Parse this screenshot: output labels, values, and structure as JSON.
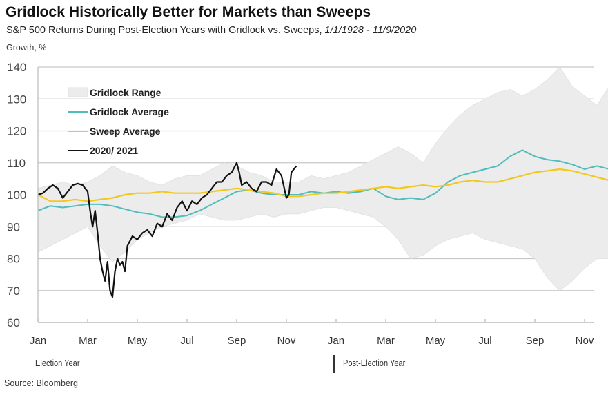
{
  "header": {
    "title": "Gridlock Historically Better for Markets than Sweeps",
    "subtitle_main": "S&P 500 Returns During Post-Election Years with Gridlock vs. Sweeps, ",
    "subtitle_range": "1/1/1928 - 11/9/2020"
  },
  "footer": {
    "election_year": "Election Year",
    "post_election_year": "Post-Election Year",
    "source": "Source: Bloomberg"
  },
  "colors": {
    "gridlock_range": "#ececec",
    "gridlock_average": "#4fbdbd",
    "sweep_average": "#f2c81e",
    "y2020": "#111111"
  },
  "chart_data": {
    "type": "line",
    "title": "Gridlock Historically Better for Markets than Sweeps",
    "ylabel": "Growth, %",
    "xlabel": "",
    "ylim": [
      60,
      140
    ],
    "yticks": [
      60,
      70,
      80,
      90,
      100,
      110,
      120,
      130,
      140
    ],
    "x_unit": "months since Jan of election year",
    "xlim": [
      0,
      23.5
    ],
    "xtick_labels": [
      "Jan",
      "Mar",
      "May",
      "Jul",
      "Sep",
      "Nov",
      "Jan",
      "Mar",
      "May",
      "Jul",
      "Sep",
      "Nov"
    ],
    "xtick_positions": [
      0,
      2,
      4,
      6,
      8,
      10,
      12,
      14,
      16,
      18,
      20,
      22
    ],
    "grid": "horizontal",
    "legend_position": "top-left",
    "legend": [
      "Gridlock Range",
      "Gridlock Average",
      "Sweep Average",
      "2020/ 2021"
    ],
    "series": [
      {
        "name": "Gridlock Range",
        "kind": "band",
        "x": [
          0,
          0.5,
          1,
          1.5,
          2,
          2.5,
          3,
          3.5,
          4,
          4.5,
          5,
          5.5,
          6,
          6.5,
          7,
          7.5,
          8,
          8.5,
          9,
          9.5,
          10,
          10.5,
          11,
          11.5,
          12,
          12.5,
          13,
          13.5,
          14,
          14.5,
          15,
          15.5,
          16,
          16.5,
          17,
          17.5,
          18,
          18.5,
          19,
          19.5,
          20,
          20.5,
          21,
          21.5,
          22,
          22.5,
          23,
          23.5
        ],
        "upper": [
          102,
          103,
          104,
          103,
          104,
          106,
          109,
          107,
          106,
          104,
          103,
          105,
          106,
          106,
          108,
          110,
          109,
          107,
          106,
          104,
          104,
          104,
          106,
          105,
          106,
          107,
          109,
          111,
          113,
          115,
          113,
          110,
          116,
          121,
          125,
          128,
          130,
          132,
          133,
          131,
          133,
          136,
          140,
          134,
          131,
          128,
          134,
          134
        ],
        "lower": [
          82,
          84,
          86,
          88,
          90,
          84,
          79,
          82,
          86,
          88,
          90,
          91,
          92,
          94,
          93,
          92,
          92,
          93,
          94,
          93,
          94,
          94,
          95,
          96,
          96,
          95,
          94,
          93,
          90,
          86,
          80,
          81,
          84,
          86,
          87,
          88,
          86,
          85,
          84,
          83,
          80,
          74,
          70,
          73,
          77,
          80,
          80,
          80
        ]
      },
      {
        "name": "Gridlock Average",
        "x": [
          0,
          0.5,
          1,
          1.5,
          2,
          2.5,
          3,
          3.5,
          4,
          4.5,
          5,
          5.5,
          6,
          6.5,
          7,
          7.5,
          8,
          8.5,
          9,
          9.5,
          10,
          10.5,
          11,
          11.5,
          12,
          12.5,
          13,
          13.5,
          14,
          14.5,
          15,
          15.5,
          16,
          16.5,
          17,
          17.5,
          18,
          18.5,
          19,
          19.5,
          20,
          20.5,
          21,
          21.5,
          22,
          22.5,
          23,
          23.5
        ],
        "values": [
          95,
          96.5,
          96,
          96.5,
          97,
          97,
          96.5,
          95.5,
          94.5,
          94,
          93,
          93,
          93.5,
          95,
          97,
          99,
          101,
          101.5,
          100.5,
          100,
          100,
          100,
          101,
          100.5,
          101,
          100.5,
          101,
          102,
          99.5,
          98.5,
          99,
          98.5,
          100.5,
          104,
          106,
          107,
          108,
          109,
          112,
          114,
          112,
          111,
          110.5,
          109.5,
          108,
          109,
          108,
          109.5
        ]
      },
      {
        "name": "Sweep Average",
        "x": [
          0,
          0.5,
          1,
          1.5,
          2,
          2.5,
          3,
          3.5,
          4,
          4.5,
          5,
          5.5,
          6,
          6.5,
          7,
          7.5,
          8,
          8.5,
          9,
          9.5,
          10,
          10.5,
          11,
          11.5,
          12,
          12.5,
          13,
          13.5,
          14,
          14.5,
          15,
          15.5,
          16,
          16.5,
          17,
          17.5,
          18,
          18.5,
          19,
          19.5,
          20,
          20.5,
          21,
          21.5,
          22,
          22.5,
          23,
          23.5
        ],
        "values": [
          100,
          98,
          98,
          98.5,
          98,
          98.5,
          99,
          100,
          100.5,
          100.5,
          101,
          100.5,
          100.5,
          100.5,
          101,
          101.5,
          102,
          101.5,
          101,
          100.5,
          99.5,
          99.5,
          100,
          100.5,
          100.5,
          101,
          101.5,
          102,
          102.5,
          102,
          102.5,
          103,
          102.5,
          103,
          104,
          104.5,
          104,
          104,
          105,
          106,
          107,
          107.5,
          108,
          107.5,
          106.5,
          105.5,
          104.5,
          104.5
        ]
      },
      {
        "name": "2020/ 2021",
        "x": [
          0,
          0.2,
          0.4,
          0.6,
          0.8,
          1.0,
          1.2,
          1.4,
          1.6,
          1.8,
          2.0,
          2.1,
          2.2,
          2.3,
          2.4,
          2.5,
          2.6,
          2.7,
          2.8,
          2.9,
          3.0,
          3.1,
          3.2,
          3.3,
          3.4,
          3.5,
          3.6,
          3.8,
          4.0,
          4.2,
          4.4,
          4.6,
          4.8,
          5.0,
          5.2,
          5.4,
          5.6,
          5.8,
          6.0,
          6.2,
          6.4,
          6.6,
          6.8,
          7.0,
          7.2,
          7.4,
          7.6,
          7.8,
          8.0,
          8.1,
          8.2,
          8.4,
          8.6,
          8.8,
          9.0,
          9.2,
          9.4,
          9.6,
          9.8,
          10.0,
          10.1,
          10.2,
          10.3,
          10.4
        ],
        "values": [
          100,
          100.5,
          102,
          103,
          102,
          99,
          101,
          103,
          103.5,
          103,
          101,
          95,
          90,
          95,
          88,
          80,
          76,
          73,
          79,
          70,
          68,
          76,
          80,
          78,
          79,
          76,
          84,
          87,
          86,
          88,
          89,
          87,
          91,
          90,
          94,
          92,
          96,
          98,
          95,
          98,
          97,
          99,
          100,
          102,
          104,
          104,
          106,
          107,
          110,
          107,
          103,
          104,
          102,
          101,
          104,
          104,
          103,
          108,
          106,
          99,
          100,
          107,
          108,
          109
        ]
      }
    ]
  }
}
